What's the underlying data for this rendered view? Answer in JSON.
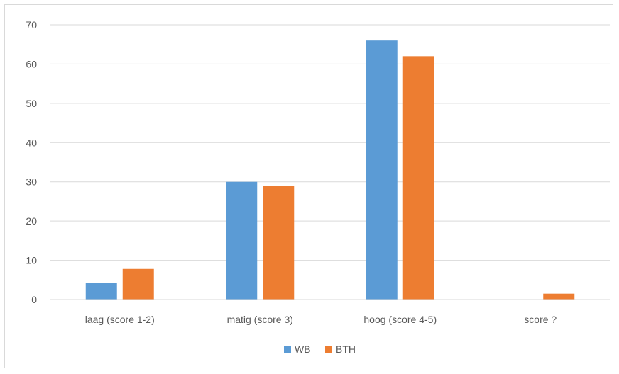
{
  "chart_data": {
    "type": "bar",
    "title": "",
    "xlabel": "",
    "ylabel": "",
    "categories": [
      "laag (score 1-2)",
      "matig (score 3)",
      "hoog (score 4-5)",
      "score ?"
    ],
    "series": [
      {
        "name": "WB",
        "values": [
          4.2,
          30,
          66,
          0
        ],
        "color": "#5b9bd5"
      },
      {
        "name": "BTH",
        "values": [
          7.8,
          29,
          62,
          1.5
        ],
        "color": "#ed7d31"
      }
    ],
    "ylim": [
      0,
      70
    ],
    "yticks": [
      0,
      10,
      20,
      30,
      40,
      50,
      60,
      70
    ],
    "grid": true,
    "legend": "bottom"
  }
}
